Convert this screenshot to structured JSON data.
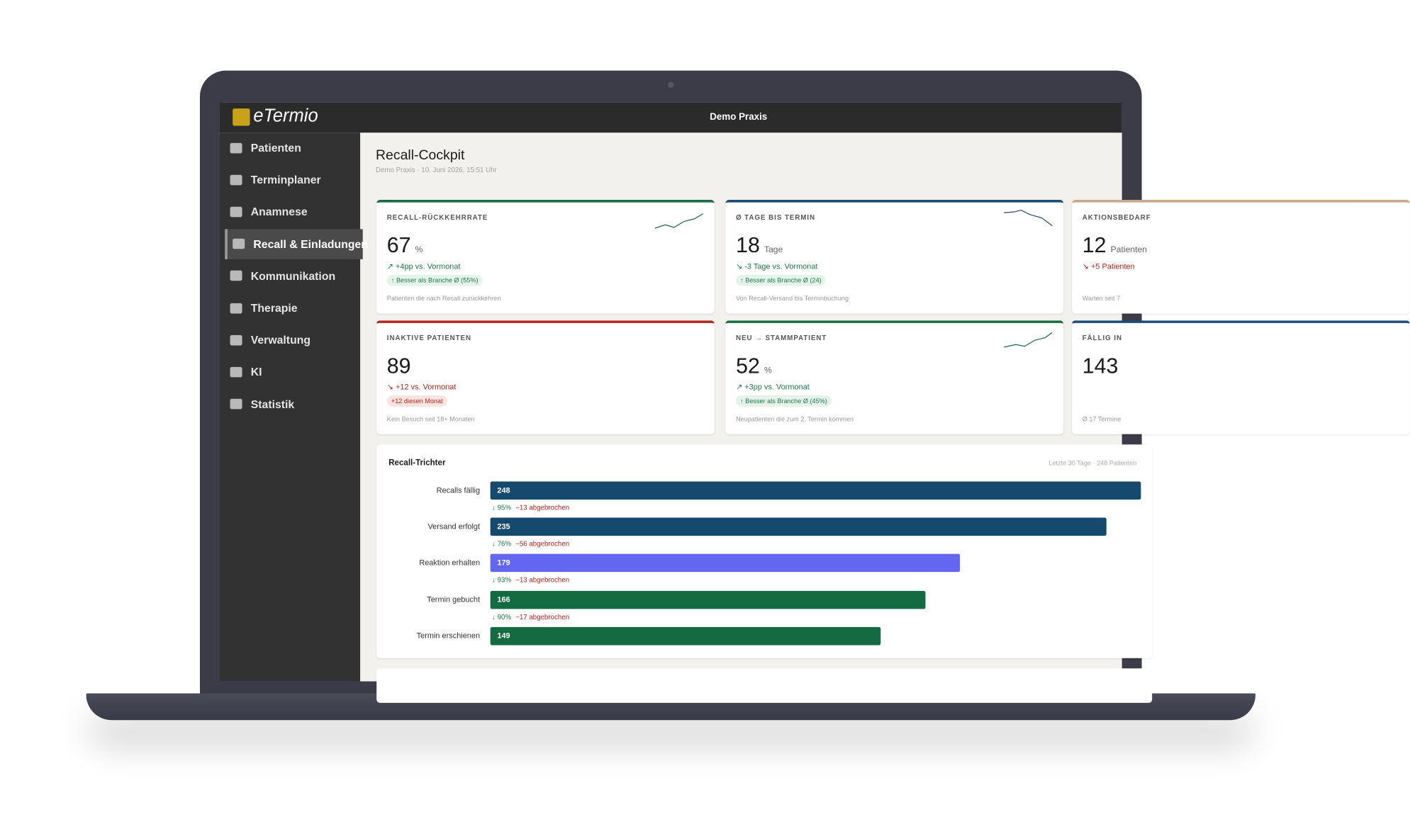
{
  "app": {
    "brand": "eTermio",
    "practice": "Demo Praxis"
  },
  "sidebar": [
    "Patienten",
    "Terminplaner",
    "Anamnese",
    "Recall & Einladungen",
    "Kommunikation",
    "Therapie",
    "Verwaltung",
    "KI",
    "Statistik"
  ],
  "page": {
    "title": "Recall-Cockpit",
    "subtitle": "Demo Praxis · 10. Juni 2026, 15:51 Uhr"
  },
  "kpis": [
    {
      "label": "RECALL-RÜCKKEHRRATE",
      "value": 67,
      "unit": "%",
      "trend": "↗ +4pp vs. Vormonat",
      "badge": "↑ Besser als Branche Ø (55%)",
      "note": "Patienten die nach Recall zurückkehren",
      "accent": "#1b6b45",
      "tone": "good"
    },
    {
      "label": "Ø TAGE BIS TERMIN",
      "value": 18,
      "unit": "Tage",
      "trend": "↘ -3 Tage vs. Vormonat",
      "badge": "↑ Besser als Branche Ø (24)",
      "note": "Von Recall-Versand bis Terminbuchung",
      "accent": "#1e4d78",
      "tone": "good"
    },
    {
      "label": "AKTIONSBEDARF",
      "value": 12,
      "unit": "Patienten",
      "trend": "↘ +5 Patienten",
      "note": "Warten seit 7",
      "accent": "#c9a98a",
      "tone": "bad"
    },
    {
      "label": "INAKTIVE PATIENTEN",
      "value": 89,
      "trend": "↘ +12 vs. Vormonat",
      "badge": "+12 diesen Monat",
      "note": "Kein Besuch seit 18+ Monaten",
      "accent": "#b3261e",
      "tone": "bad"
    },
    {
      "label": "NEU → STAMMPATIENT",
      "value": 52,
      "unit": "%",
      "trend": "↗ +3pp vs. Vormonat",
      "badge": "↑ Besser als Branche Ø (45%)",
      "note": "Neupatienten die zum 2. Termin kommen",
      "accent": "#1b6b45",
      "tone": "good"
    },
    {
      "label": "FÄLLIG IN",
      "value": 143,
      "note": "Ø 17 Termine",
      "accent": "#1e4d78",
      "tone": "good"
    }
  ],
  "funnel": {
    "title": "Recall-Trichter",
    "range": "Letzte 30 Tage · 248 Patienten",
    "steps": [
      {
        "label": "Recalls fällig",
        "value": 248,
        "color": "#154a6e"
      },
      {
        "label": "Versand erfolgt",
        "value": 235,
        "color": "#154a6e"
      },
      {
        "label": "Reaktion erhalten",
        "value": 179,
        "color": "#6366f1"
      },
      {
        "label": "Termin gebucht",
        "value": 166,
        "color": "#136b42"
      },
      {
        "label": "Termin erschienen",
        "value": 149,
        "color": "#136b42"
      }
    ],
    "conversions": [
      {
        "rate": "↓ 95%",
        "dropped": "−13 abgebrochen"
      },
      {
        "rate": "↓ 76%",
        "dropped": "−56 abgebrochen"
      },
      {
        "rate": "↓ 93%",
        "dropped": "−13 abgebrochen"
      },
      {
        "rate": "↓ 90%",
        "dropped": "−17 abgebrochen"
      }
    ]
  }
}
